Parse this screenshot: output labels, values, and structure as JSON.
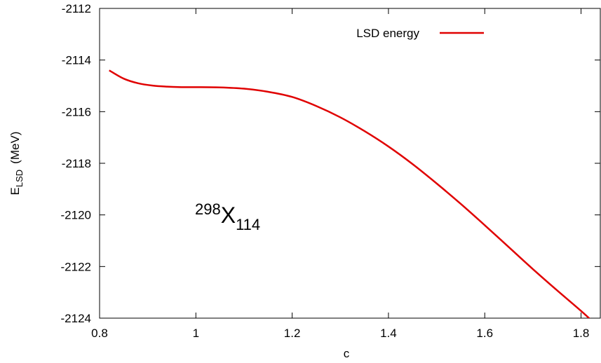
{
  "chart_data": {
    "type": "line",
    "title": "",
    "xlabel": "c",
    "ylabel_main": "E",
    "ylabel_sub": "LSD",
    "ylabel_unit": "(MeV)",
    "xlim": [
      0.8,
      1.84
    ],
    "ylim": [
      -2124,
      -2112
    ],
    "xticks": [
      0.8,
      1,
      1.2,
      1.4,
      1.6,
      1.8
    ],
    "xtick_labels": [
      "0.8",
      "1",
      "1.2",
      "1.4",
      "1.6",
      "1.8"
    ],
    "yticks": [
      -2124,
      -2122,
      -2120,
      -2118,
      -2116,
      -2114,
      -2112
    ],
    "ytick_labels": [
      "-2124",
      "-2122",
      "-2120",
      "-2118",
      "-2116",
      "-2114",
      "-2112"
    ],
    "grid": false,
    "legend_position": "top-right",
    "series": [
      {
        "name": "LSD energy",
        "color": "#e00000",
        "x": [
          0.82,
          0.85,
          0.88,
          0.91,
          0.94,
          0.97,
          1.0,
          1.05,
          1.1,
          1.15,
          1.2,
          1.25,
          1.3,
          1.35,
          1.4,
          1.45,
          1.5,
          1.55,
          1.6,
          1.65,
          1.7,
          1.75,
          1.8,
          1.84
        ],
        "y": [
          -2114.4,
          -2114.72,
          -2114.9,
          -2114.99,
          -2115.03,
          -2115.05,
          -2115.05,
          -2115.06,
          -2115.11,
          -2115.23,
          -2115.43,
          -2115.78,
          -2116.22,
          -2116.75,
          -2117.35,
          -2118.03,
          -2118.78,
          -2119.57,
          -2120.4,
          -2121.25,
          -2122.1,
          -2122.92,
          -2123.72,
          -2124.4
        ]
      }
    ],
    "annotation": {
      "mass": "298",
      "symbol": "X",
      "charge": "114"
    }
  }
}
